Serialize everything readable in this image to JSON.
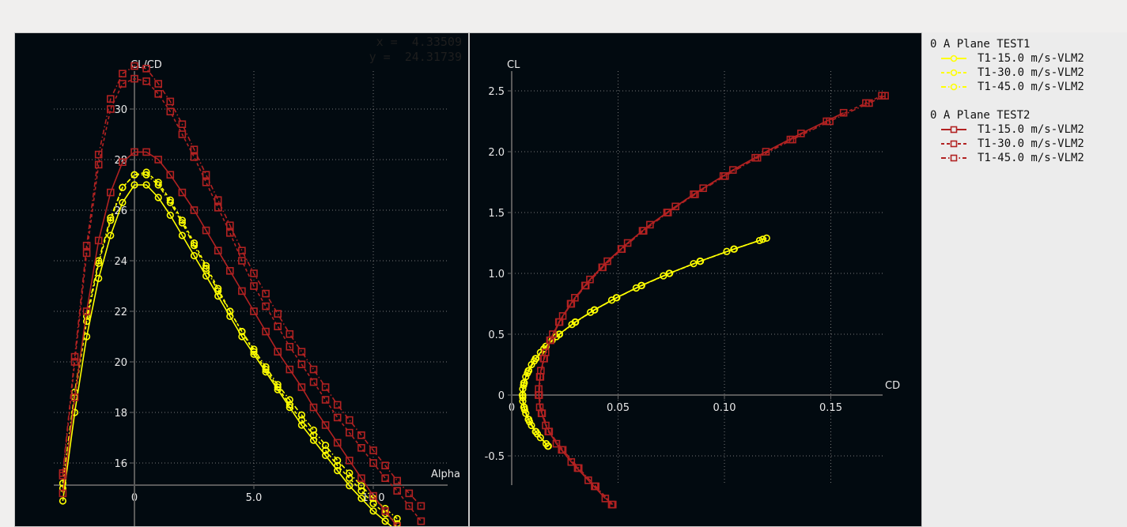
{
  "readout": {
    "x_label": "x =",
    "x_value": "4.33509",
    "y_label": "y =",
    "y_value": "24.31739"
  },
  "legend": {
    "groups": [
      {
        "title": "0 A Plane TEST1",
        "items": [
          {
            "label": "T1-15.0 m/s-VLM2",
            "color": "#ffff00",
            "marker": "circle",
            "dash": "solid"
          },
          {
            "label": "T1-30.0 m/s-VLM2",
            "color": "#ffff00",
            "marker": "circle",
            "dash": "dashed"
          },
          {
            "label": "T1-45.0 m/s-VLM2",
            "color": "#ffff00",
            "marker": "circle",
            "dash": "dashdot"
          }
        ]
      },
      {
        "title": "0 A Plane TEST2",
        "items": [
          {
            "label": "T1-15.0 m/s-VLM2",
            "color": "#b22222",
            "marker": "square",
            "dash": "solid"
          },
          {
            "label": "T1-30.0 m/s-VLM2",
            "color": "#b22222",
            "marker": "square",
            "dash": "dashed"
          },
          {
            "label": "T1-45.0 m/s-VLM2",
            "color": "#b22222",
            "marker": "square",
            "dash": "dashdot"
          }
        ]
      }
    ]
  },
  "chart_data": [
    {
      "type": "line",
      "xlabel": "Alpha",
      "ylabel": "CL/CD",
      "xticks": [
        "0",
        "5.0",
        "10.0"
      ],
      "xtick_values": [
        0,
        5,
        10
      ],
      "yticks": [
        "16",
        "18",
        "20",
        "22",
        "24",
        "26",
        "28",
        "30"
      ],
      "ytick_values": [
        16,
        18,
        20,
        22,
        24,
        26,
        28,
        30
      ],
      "xlim": [
        -3.3,
        13.2
      ],
      "ylim": [
        13.4,
        31.9
      ],
      "grid": true,
      "series": [
        {
          "name": "T1-15.0 m/s-VLM2",
          "group": "0 A Plane TEST1",
          "color": "#ffff00",
          "marker": "circle",
          "dash": "solid",
          "x_start": -3,
          "x_step": 0.5,
          "y": [
            14.5,
            18.0,
            21.0,
            23.3,
            25.0,
            26.3,
            27.0,
            27.0,
            26.5,
            25.8,
            25.0,
            24.2,
            23.4,
            22.6,
            21.8,
            21.0,
            20.3,
            19.6,
            18.9,
            18.2,
            17.5,
            16.9,
            16.3,
            15.7,
            15.1,
            14.6,
            14.1,
            13.7,
            13.3
          ]
        },
        {
          "name": "T1-30.0 m/s-VLM2",
          "group": "0 A Plane TEST1",
          "color": "#ffff00",
          "marker": "circle",
          "dash": "dashed",
          "x_start": -3,
          "x_step": 0.5,
          "y": [
            15.0,
            18.6,
            21.6,
            23.9,
            25.6,
            26.9,
            27.4,
            27.5,
            27.1,
            26.4,
            25.6,
            24.7,
            23.8,
            22.9,
            22.0,
            21.2,
            20.4,
            19.7,
            19.0,
            18.3,
            17.7,
            17.1,
            16.5,
            15.9,
            15.4,
            14.9,
            14.4,
            14.0,
            13.6
          ]
        },
        {
          "name": "T1-45.0 m/s-VLM2",
          "group": "0 A Plane TEST1",
          "color": "#ffff00",
          "marker": "circle",
          "dash": "dashdot",
          "x_start": -3,
          "x_step": 0.5,
          "y": [
            15.2,
            18.8,
            21.8,
            24.0,
            25.7,
            26.9,
            27.4,
            27.4,
            27.0,
            26.3,
            25.5,
            24.6,
            23.7,
            22.8,
            22.0,
            21.2,
            20.5,
            19.8,
            19.1,
            18.5,
            17.9,
            17.3,
            16.7,
            16.1,
            15.6,
            15.1,
            14.6,
            14.2,
            13.8
          ]
        },
        {
          "name": "T1-15.0 m/s-VLM2",
          "group": "0 A Plane TEST2",
          "color": "#b22222",
          "marker": "square",
          "dash": "solid",
          "x_start": -3,
          "x_step": 0.5,
          "y": [
            14.8,
            18.6,
            22.0,
            24.8,
            26.7,
            27.9,
            28.3,
            28.3,
            28.0,
            27.4,
            26.7,
            26.0,
            25.2,
            24.4,
            23.6,
            22.8,
            22.0,
            21.2,
            20.4,
            19.7,
            19.0,
            18.2,
            17.5,
            16.8,
            16.1,
            15.4,
            14.7,
            14.1,
            13.5
          ]
        },
        {
          "name": "T1-30.0 m/s-VLM2",
          "group": "0 A Plane TEST2",
          "color": "#b22222",
          "marker": "square",
          "dash": "dashed",
          "x_start": -3,
          "x_step": 0.5,
          "y": [
            15.5,
            20.0,
            24.3,
            27.8,
            30.0,
            31.0,
            31.2,
            31.1,
            30.6,
            29.9,
            29.0,
            28.1,
            27.1,
            26.1,
            25.1,
            24.0,
            23.0,
            22.2,
            21.4,
            20.6,
            19.9,
            19.2,
            18.5,
            17.8,
            17.2,
            16.6,
            16.0,
            15.4,
            14.9,
            14.3,
            13.7
          ]
        },
        {
          "name": "T1-45.0 m/s-VLM2",
          "group": "0 A Plane TEST2",
          "color": "#b22222",
          "marker": "square",
          "dash": "dashdot",
          "x_start": -3,
          "x_step": 0.5,
          "y": [
            15.6,
            20.2,
            24.6,
            28.2,
            30.4,
            31.4,
            31.7,
            31.6,
            31.0,
            30.3,
            29.4,
            28.4,
            27.4,
            26.4,
            25.4,
            24.4,
            23.5,
            22.7,
            21.9,
            21.1,
            20.4,
            19.7,
            19.0,
            18.3,
            17.7,
            17.1,
            16.5,
            15.9,
            15.3,
            14.8,
            14.3
          ]
        }
      ]
    },
    {
      "type": "line",
      "xlabel": "CD",
      "ylabel": "CL",
      "xticks": [
        "0",
        "0.05",
        "0.10",
        "0.15"
      ],
      "xtick_values": [
        0,
        0.05,
        0.1,
        0.15
      ],
      "yticks": [
        "-0.5",
        "0",
        "0.5",
        "1.0",
        "1.5",
        "2.0",
        "2.5"
      ],
      "ytick_values": [
        -0.5,
        0,
        0.5,
        1.0,
        1.5,
        2.0,
        2.5
      ],
      "xlim": [
        -0.019,
        0.194
      ],
      "ylim": [
        -1.08,
        2.98
      ],
      "grid": true,
      "series": [
        {
          "name": "T1-15.0 m/s-VLM2",
          "group": "0 A Plane TEST1",
          "color": "#ffff00",
          "marker": "circle",
          "dash": "solid",
          "cl": [
            -0.42,
            -0.35,
            -0.3,
            -0.25,
            -0.2,
            -0.15,
            -0.1,
            -0.05,
            0,
            0.05,
            0.1,
            0.15,
            0.2,
            0.25,
            0.3,
            0.35,
            0.4,
            0.45,
            0.5,
            0.6,
            0.7,
            0.8,
            0.9,
            1.0,
            1.1,
            1.2,
            1.29
          ],
          "cd": [
            0.017,
            0.0135,
            0.0112,
            0.0093,
            0.0078,
            0.0066,
            0.0057,
            0.0052,
            0.005,
            0.0052,
            0.0057,
            0.0066,
            0.0078,
            0.0093,
            0.0112,
            0.0135,
            0.016,
            0.019,
            0.0223,
            0.0298,
            0.0388,
            0.0492,
            0.0609,
            0.074,
            0.0885,
            0.1044,
            0.1198
          ]
        },
        {
          "name": "T1-30.0 m/s-VLM2",
          "group": "0 A Plane TEST1",
          "color": "#ffff00",
          "marker": "circle",
          "dash": "dashed",
          "cl": [
            -0.42,
            -0.32,
            -0.22,
            -0.12,
            -0.02,
            0.08,
            0.18,
            0.28,
            0.38,
            0.48,
            0.58,
            0.68,
            0.78,
            0.88,
            0.98,
            1.08,
            1.18,
            1.28
          ],
          "cd": [
            0.0172,
            0.0121,
            0.0084,
            0.0061,
            0.0052,
            0.0056,
            0.0074,
            0.0106,
            0.0151,
            0.021,
            0.0283,
            0.037,
            0.047,
            0.0585,
            0.0713,
            0.0855,
            0.1011,
            0.118
          ]
        },
        {
          "name": "T1-45.0 m/s-VLM2",
          "group": "0 A Plane TEST1",
          "color": "#ffff00",
          "marker": "circle",
          "dash": "dashdot",
          "cl": [
            -0.4,
            -0.3,
            -0.2,
            -0.1,
            0,
            0.1,
            0.2,
            0.3,
            0.4,
            0.5,
            0.6,
            0.7,
            0.8,
            0.9,
            1.0,
            1.1,
            1.2,
            1.27
          ],
          "cd": [
            0.0162,
            0.0114,
            0.008,
            0.0059,
            0.0052,
            0.0059,
            0.008,
            0.0114,
            0.0162,
            0.0225,
            0.03,
            0.039,
            0.0494,
            0.0611,
            0.0742,
            0.0887,
            0.1046,
            0.1165
          ]
        },
        {
          "name": "T1-15.0 m/s-VLM2",
          "group": "0 A Plane TEST2",
          "color": "#b22222",
          "marker": "square",
          "dash": "solid",
          "cl": [
            -0.85,
            -0.7,
            -0.55,
            -0.4,
            -0.25,
            -0.1,
            0.05,
            0.2,
            0.35,
            0.5,
            0.65,
            0.8,
            0.95,
            1.1,
            1.25,
            1.4,
            1.55,
            1.7,
            1.85,
            2.0,
            2.15,
            2.32
          ],
          "cd": [
            0.044,
            0.036,
            0.028,
            0.021,
            0.016,
            0.0132,
            0.0127,
            0.0137,
            0.0159,
            0.0193,
            0.024,
            0.0297,
            0.0368,
            0.045,
            0.0545,
            0.065,
            0.077,
            0.09,
            0.104,
            0.1195,
            0.136,
            0.156
          ]
        },
        {
          "name": "T1-30.0 m/s-VLM2",
          "group": "0 A Plane TEST2",
          "color": "#b22222",
          "marker": "square",
          "dash": "dashed",
          "cl": [
            -0.9,
            -0.75,
            -0.6,
            -0.45,
            -0.3,
            -0.15,
            0,
            0.15,
            0.3,
            0.45,
            0.6,
            0.75,
            0.9,
            1.05,
            1.2,
            1.35,
            1.5,
            1.65,
            1.8,
            1.95,
            2.1,
            2.25,
            2.4,
            2.46
          ],
          "cd": [
            0.047,
            0.039,
            0.031,
            0.0235,
            0.0172,
            0.014,
            0.0126,
            0.0132,
            0.015,
            0.018,
            0.0222,
            0.0277,
            0.0345,
            0.0425,
            0.0515,
            0.0615,
            0.073,
            0.0855,
            0.0995,
            0.1145,
            0.131,
            0.148,
            0.1665,
            0.174
          ]
        },
        {
          "name": "T1-45.0 m/s-VLM2",
          "group": "0 A Plane TEST2",
          "color": "#b22222",
          "marker": "square",
          "dash": "dashdot",
          "cl": [
            -0.9,
            -0.75,
            -0.6,
            -0.45,
            -0.3,
            -0.15,
            0,
            0.15,
            0.3,
            0.45,
            0.6,
            0.75,
            0.9,
            1.05,
            1.2,
            1.35,
            1.5,
            1.65,
            1.8,
            1.95,
            2.1,
            2.25,
            2.4,
            2.46
          ],
          "cd": [
            0.0475,
            0.0395,
            0.0315,
            0.024,
            0.0176,
            0.0143,
            0.0129,
            0.0135,
            0.0153,
            0.0183,
            0.0225,
            0.028,
            0.0348,
            0.0428,
            0.0518,
            0.062,
            0.0735,
            0.0862,
            0.1003,
            0.1155,
            0.132,
            0.1495,
            0.168,
            0.1755
          ]
        }
      ]
    }
  ]
}
